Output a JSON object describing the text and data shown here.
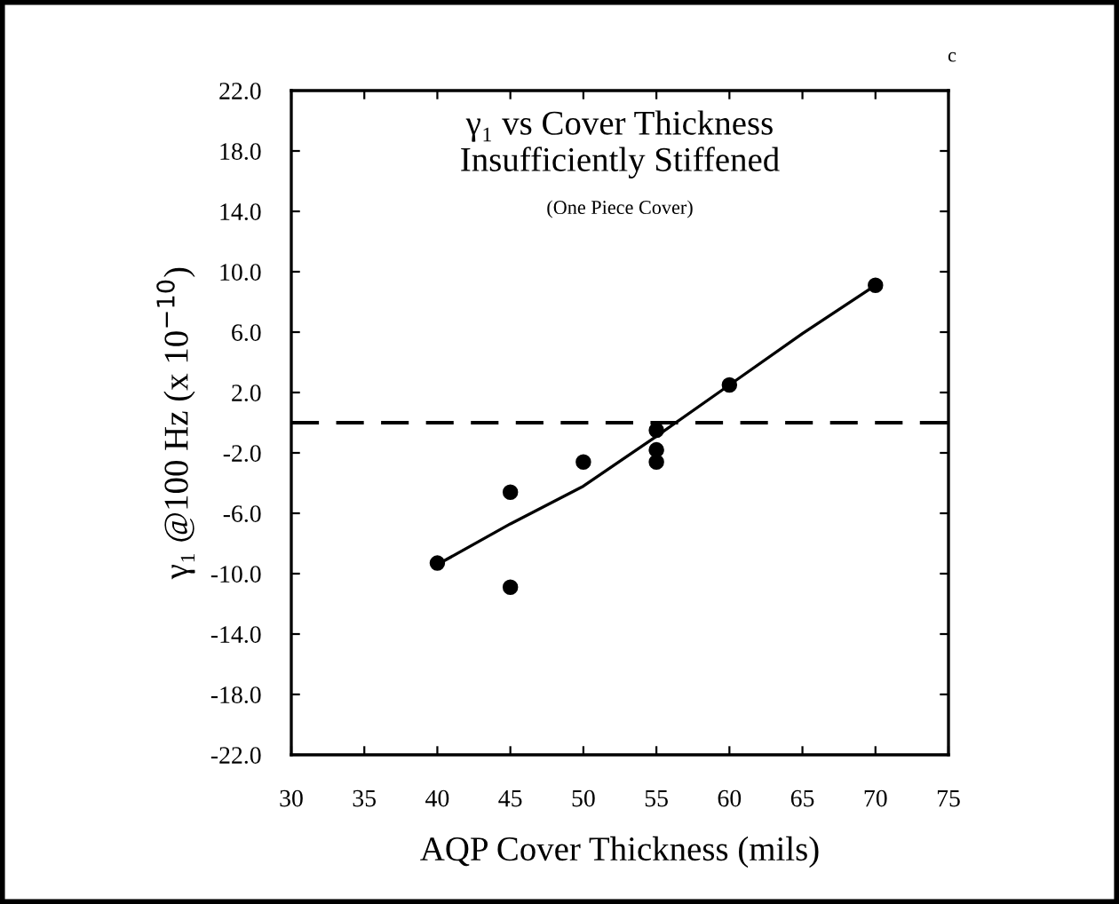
{
  "chart_data": {
    "type": "scatter",
    "title": "γ₁ vs Cover Thickness\nInsufficiently Stiffened",
    "subtitle": "(One Piece Cover)",
    "xlabel": "AQP Cover Thickness (mils)",
    "ylabel": "γ₁ @100 Hz (x 10$^{−10}$)",
    "series": [
      {
        "color": "#000000",
        "marker": "circle",
        "x": [
          40,
          45,
          45,
          50,
          55,
          55,
          55,
          60,
          70
        ],
        "values": [
          -9.3,
          -4.6,
          -10.9,
          -2.6,
          -0.5,
          -1.8,
          -2.6,
          2.5,
          9.1
        ]
      },
      {
        "type": "line",
        "color": "#000000",
        "marker": "none",
        "line_style": "solid",
        "x": [
          40,
          45,
          50,
          55,
          60,
          65,
          70
        ],
        "values": [
          -9.4,
          -6.7,
          -4.2,
          -0.9,
          2.5,
          5.9,
          9.1
        ]
      }
    ],
    "xlim": [
      30,
      75
    ],
    "xticks": [
      30,
      35,
      40,
      45,
      50,
      55,
      60,
      65,
      70,
      75
    ],
    "ylim": [
      -22,
      22
    ],
    "yticks": [
      {
        "value": -22,
        "label": "-22.0"
      },
      {
        "value": -18,
        "label": "-18.0"
      },
      {
        "value": -14,
        "label": "-14.0"
      },
      {
        "value": -10,
        "label": "-10.0"
      },
      {
        "value": -6,
        "label": "-6.0"
      },
      {
        "value": -2,
        "label": "-2.0"
      },
      {
        "value": 2,
        "label": "2.0"
      },
      {
        "value": 6,
        "label": "6.0"
      },
      {
        "value": 10,
        "label": "10.0"
      },
      {
        "value": 14,
        "label": "14.0"
      },
      {
        "value": 18,
        "label": "18.0"
      },
      {
        "value": 22,
        "label": "22.0"
      }
    ],
    "ref_lines": [
      {
        "axis": "y",
        "value": 0,
        "color": "#000000",
        "line_style": "dashed"
      }
    ],
    "annotations": [
      "c"
    ],
    "grid": false,
    "legend": false
  }
}
